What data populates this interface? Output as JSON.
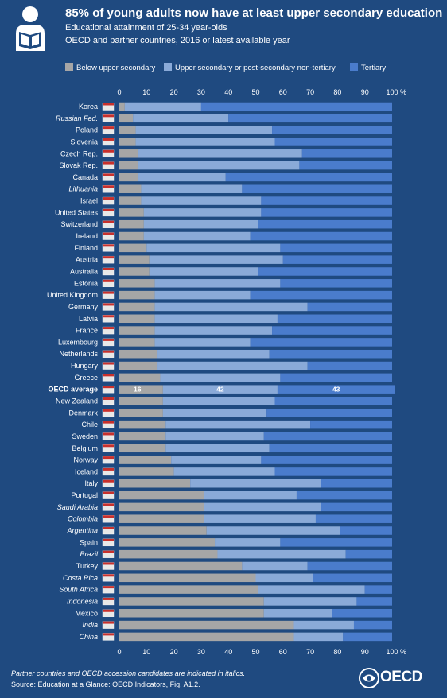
{
  "header": {
    "title": "85% of young adults now have at least upper secondary education",
    "subtitle1": "Educational attainment of 25-34 year-olds",
    "subtitle2": "OECD and partner countries, 2016 or latest available year",
    "icon": "student-reading-icon"
  },
  "legend": {
    "items": [
      {
        "label": "Below upper secondary",
        "color": "#a6a6a6"
      },
      {
        "label": "Upper secondary or post-secondary non-tertiary",
        "color": "#8aaad8"
      },
      {
        "label": "Tertiary",
        "color": "#4a7ccc"
      }
    ]
  },
  "chart_data": {
    "type": "bar",
    "orientation": "horizontal",
    "stacked": true,
    "xlim": [
      0,
      100
    ],
    "ticks": [
      0,
      10,
      20,
      30,
      40,
      50,
      60,
      70,
      80,
      90,
      100
    ],
    "unit_label": "%",
    "colors": {
      "below": "#a6a6a6",
      "upper": "#8aaad8",
      "tertiary": "#4a7ccc"
    },
    "series": [
      {
        "name": "Below upper secondary"
      },
      {
        "name": "Upper secondary or post-secondary non-tertiary"
      },
      {
        "name": "Tertiary"
      }
    ],
    "average_labels": [
      "16",
      "42",
      "43"
    ],
    "rows": [
      {
        "country": "Korea",
        "italic": false,
        "flag": "kr",
        "below": 2,
        "upper": 28,
        "tertiary": 70
      },
      {
        "country": "Russian Fed.",
        "italic": true,
        "flag": "ru",
        "below": 5,
        "upper": 35,
        "tertiary": 60
      },
      {
        "country": "Poland",
        "italic": false,
        "flag": "pl",
        "below": 6,
        "upper": 50,
        "tertiary": 44
      },
      {
        "country": "Slovenia",
        "italic": false,
        "flag": "si",
        "below": 6,
        "upper": 51,
        "tertiary": 43
      },
      {
        "country": "Czech Rep.",
        "italic": false,
        "flag": "cz",
        "below": 7,
        "upper": 60,
        "tertiary": 33
      },
      {
        "country": "Slovak Rep.",
        "italic": false,
        "flag": "sk",
        "below": 7,
        "upper": 59,
        "tertiary": 34
      },
      {
        "country": "Canada",
        "italic": false,
        "flag": "ca",
        "below": 7,
        "upper": 32,
        "tertiary": 61
      },
      {
        "country": "Lithuania",
        "italic": true,
        "flag": "lt",
        "below": 8,
        "upper": 37,
        "tertiary": 55
      },
      {
        "country": "Israel",
        "italic": false,
        "flag": "il",
        "below": 8,
        "upper": 44,
        "tertiary": 48
      },
      {
        "country": "United States",
        "italic": false,
        "flag": "us",
        "below": 9,
        "upper": 43,
        "tertiary": 48
      },
      {
        "country": "Switzerland",
        "italic": false,
        "flag": "ch",
        "below": 9,
        "upper": 42,
        "tertiary": 49
      },
      {
        "country": "Ireland",
        "italic": false,
        "flag": "ie",
        "below": 9,
        "upper": 39,
        "tertiary": 52
      },
      {
        "country": "Finland",
        "italic": false,
        "flag": "fi",
        "below": 10,
        "upper": 49,
        "tertiary": 41
      },
      {
        "country": "Austria",
        "italic": false,
        "flag": "at",
        "below": 11,
        "upper": 49,
        "tertiary": 40
      },
      {
        "country": "Australia",
        "italic": false,
        "flag": "au",
        "below": 11,
        "upper": 40,
        "tertiary": 49
      },
      {
        "country": "Estonia",
        "italic": false,
        "flag": "ee",
        "below": 13,
        "upper": 46,
        "tertiary": 41
      },
      {
        "country": "United Kingdom",
        "italic": false,
        "flag": "gb",
        "below": 13,
        "upper": 35,
        "tertiary": 52
      },
      {
        "country": "Germany",
        "italic": false,
        "flag": "de",
        "below": 13,
        "upper": 56,
        "tertiary": 31
      },
      {
        "country": "Latvia",
        "italic": false,
        "flag": "lv",
        "below": 13,
        "upper": 45,
        "tertiary": 42
      },
      {
        "country": "France",
        "italic": false,
        "flag": "fr",
        "below": 13,
        "upper": 43,
        "tertiary": 44
      },
      {
        "country": "Luxembourg",
        "italic": false,
        "flag": "lu",
        "below": 13,
        "upper": 35,
        "tertiary": 52
      },
      {
        "country": "Netherlands",
        "italic": false,
        "flag": "nl",
        "below": 14,
        "upper": 41,
        "tertiary": 45
      },
      {
        "country": "Hungary",
        "italic": false,
        "flag": "hu",
        "below": 14,
        "upper": 55,
        "tertiary": 31
      },
      {
        "country": "Greece",
        "italic": false,
        "flag": "gr",
        "below": 15,
        "upper": 44,
        "tertiary": 41
      },
      {
        "country": "OECD average",
        "italic": false,
        "bold": true,
        "flag": "oecd",
        "below": 16,
        "upper": 42,
        "tertiary": 43
      },
      {
        "country": "New Zealand",
        "italic": false,
        "flag": "nz",
        "below": 16,
        "upper": 41,
        "tertiary": 43
      },
      {
        "country": "Denmark",
        "italic": false,
        "flag": "dk",
        "below": 16,
        "upper": 38,
        "tertiary": 46
      },
      {
        "country": "Chile",
        "italic": false,
        "flag": "cl",
        "below": 17,
        "upper": 53,
        "tertiary": 30
      },
      {
        "country": "Sweden",
        "italic": false,
        "flag": "se",
        "below": 17,
        "upper": 36,
        "tertiary": 47
      },
      {
        "country": "Belgium",
        "italic": false,
        "flag": "be",
        "below": 17,
        "upper": 38,
        "tertiary": 45
      },
      {
        "country": "Norway",
        "italic": false,
        "flag": "no",
        "below": 19,
        "upper": 33,
        "tertiary": 48
      },
      {
        "country": "Iceland",
        "italic": false,
        "flag": "is",
        "below": 20,
        "upper": 37,
        "tertiary": 43
      },
      {
        "country": "Italy",
        "italic": false,
        "flag": "it",
        "below": 26,
        "upper": 48,
        "tertiary": 26
      },
      {
        "country": "Portugal",
        "italic": false,
        "flag": "pt",
        "below": 31,
        "upper": 34,
        "tertiary": 35
      },
      {
        "country": "Saudi Arabia",
        "italic": true,
        "flag": "sa",
        "below": 31,
        "upper": 43,
        "tertiary": 26
      },
      {
        "country": "Colombia",
        "italic": true,
        "flag": "co",
        "below": 31,
        "upper": 41,
        "tertiary": 28
      },
      {
        "country": "Argentina",
        "italic": true,
        "flag": "ar",
        "below": 32,
        "upper": 49,
        "tertiary": 19
      },
      {
        "country": "Spain",
        "italic": false,
        "flag": "es",
        "below": 35,
        "upper": 24,
        "tertiary": 41
      },
      {
        "country": "Brazil",
        "italic": true,
        "flag": "br",
        "below": 36,
        "upper": 47,
        "tertiary": 17
      },
      {
        "country": "Turkey",
        "italic": false,
        "flag": "tr",
        "below": 45,
        "upper": 24,
        "tertiary": 31
      },
      {
        "country": "Costa Rica",
        "italic": true,
        "flag": "cr",
        "below": 50,
        "upper": 21,
        "tertiary": 29
      },
      {
        "country": "South Africa",
        "italic": true,
        "flag": "za",
        "below": 51,
        "upper": 39,
        "tertiary": 10
      },
      {
        "country": "Indonesia",
        "italic": true,
        "flag": "id",
        "below": 53,
        "upper": 34,
        "tertiary": 13
      },
      {
        "country": "Mexico",
        "italic": false,
        "flag": "mx",
        "below": 53,
        "upper": 25,
        "tertiary": 22
      },
      {
        "country": "India",
        "italic": true,
        "flag": "in",
        "below": 64,
        "upper": 22,
        "tertiary": 14
      },
      {
        "country": "China",
        "italic": true,
        "flag": "cn",
        "below": 64,
        "upper": 18,
        "tertiary": 18
      }
    ]
  },
  "footer": {
    "note": "Partner countries and OECD accession candidates are indicated in italics.",
    "source": "Source: Education at a Glance: OECD Indicators, Fig. A1.2.",
    "logo_text": "OECD",
    "logo_icon": "oecd-logo-icon"
  }
}
